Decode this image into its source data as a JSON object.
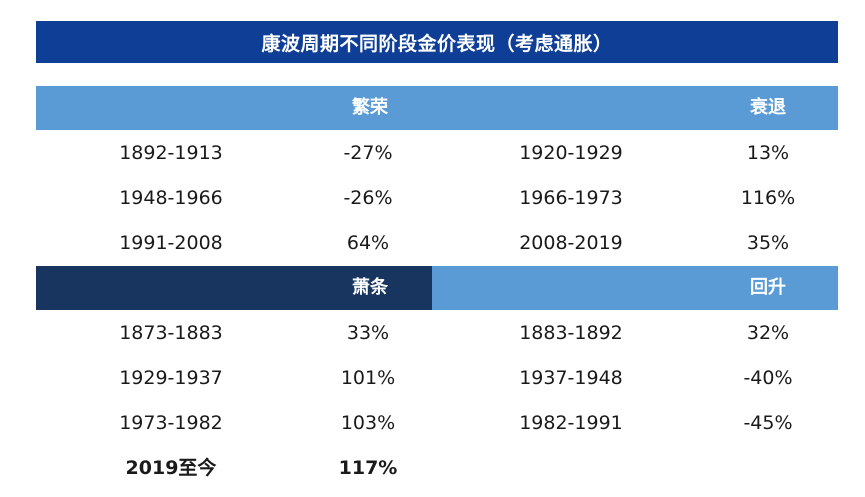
{
  "title": "康波周期不同阶段金价表现（考虑通胀）",
  "colors": {
    "title_bg": "#0e3e96",
    "band_light": "#5b9bd5",
    "band_dark": "#17355e",
    "text": "#1a1a1a"
  },
  "section_a": {
    "left_label": "繁荣",
    "right_label": "衰退",
    "rows": [
      {
        "period_l": "1892-1913",
        "value_l": "-27%",
        "period_r": "1920-1929",
        "value_r": "13%"
      },
      {
        "period_l": "1948-1966",
        "value_l": "-26%",
        "period_r": "1966-1973",
        "value_r": "116%"
      },
      {
        "period_l": "1991-2008",
        "value_l": "64%",
        "period_r": "2008-2019",
        "value_r": "35%"
      }
    ]
  },
  "section_b": {
    "left_label": "萧条",
    "right_label": "回升",
    "rows": [
      {
        "period_l": "1873-1883",
        "value_l": "33%",
        "period_r": "1883-1892",
        "value_r": "32%"
      },
      {
        "period_l": "1929-1937",
        "value_l": "101%",
        "period_r": "1937-1948",
        "value_r": "-40%"
      },
      {
        "period_l": "1973-1982",
        "value_l": "103%",
        "period_r": "1982-1991",
        "value_r": "-45%"
      }
    ],
    "current": {
      "period": "2019至今",
      "value": "117%"
    }
  }
}
